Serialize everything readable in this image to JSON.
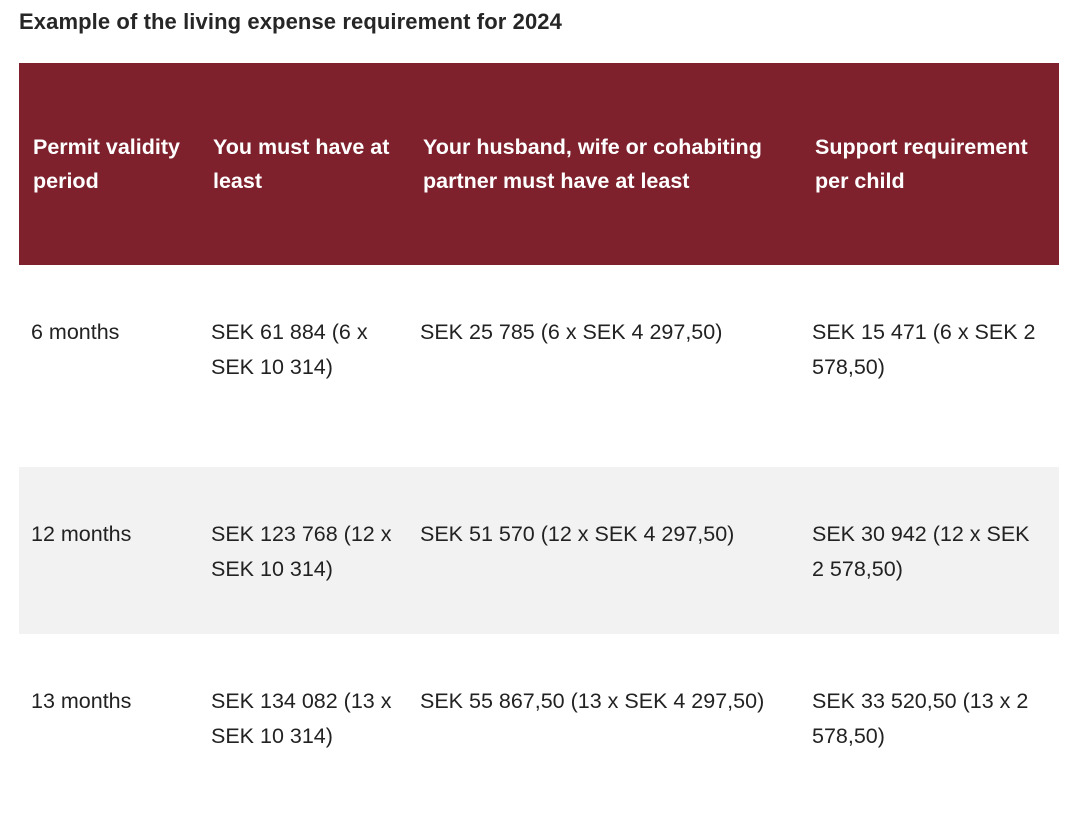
{
  "caption": "Example of the living expense requirement for 2024",
  "table": {
    "headers": [
      "Permit validity period",
      "You must have at least",
      "Your husband, wife or cohabiting partner must have at least",
      "Support requirement per child"
    ],
    "rows": [
      [
        "6 months",
        "SEK 61 884 (6 x SEK 10 314)",
        "SEK 25 785 (6 x SEK 4 297,50)",
        "SEK 15 471 (6 x SEK 2 578,50)"
      ],
      [
        "12 months",
        "SEK 123 768 (12 x SEK 10 314)",
        "SEK 51 570 (12 x SEK 4 297,50)",
        "SEK 30 942 (12 x SEK 2 578,50)"
      ],
      [
        "13 months",
        "SEK 134 082 (13 x SEK 10 314)",
        "SEK 55 867,50 (13 x SEK 4 297,50)",
        "SEK 33 520,50 (13 x 2 578,50)"
      ]
    ]
  },
  "colors": {
    "header_background": "#7e212d",
    "header_text": "#ffffff",
    "striped_row_background": "#f2f2f2"
  }
}
